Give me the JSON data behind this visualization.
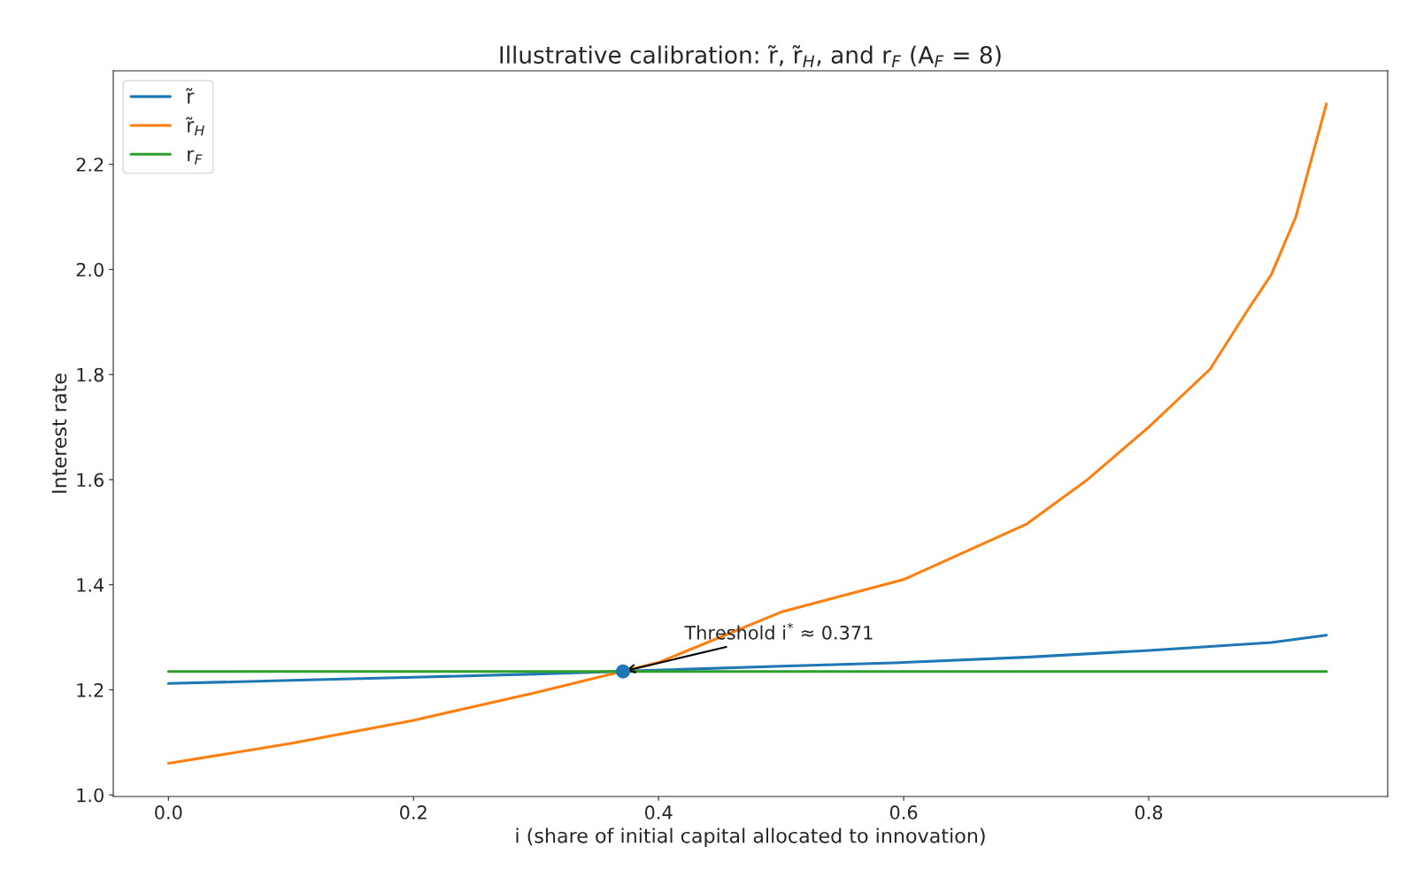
{
  "chart_data": {
    "type": "line",
    "title": "Illustrative calibration: r̃, r̃$_{H}$, and r$_{F}$ (A$_{F}$ = 8)",
    "xlabel": "i (share of initial capital allocated to innovation)",
    "ylabel": "Interest rate",
    "xlim": [
      -0.045,
      0.995
    ],
    "xticks": [
      {
        "value": 0,
        "label": "0.0"
      },
      0.2,
      0.4,
      0.6,
      0.8
    ],
    "ylim": [
      0.997,
      2.378
    ],
    "yticks": [
      {
        "value": 1,
        "label": "1.0"
      },
      1.2,
      1.4,
      1.6,
      1.8,
      {
        "value": 2,
        "label": "2.0"
      },
      2.2
    ],
    "grid": false,
    "legend": "top left",
    "line_style": "solid",
    "series": [
      {
        "name": "r̃",
        "color": "#1f77b4",
        "x": [
          0,
          0.1,
          0.2,
          0.3,
          0.5,
          0.6,
          0.7,
          0.8,
          0.9,
          0.945
        ],
        "values": [
          1.212,
          1.218,
          1.224,
          1.23,
          1.245,
          1.252,
          1.262,
          1.275,
          1.29,
          1.304
        ]
      },
      {
        "name": "r̃$_{H}$",
        "color": "#ff7f0e",
        "x": [
          0,
          0.1,
          0.2,
          0.3,
          0.4,
          0.5,
          0.6,
          0.7,
          0.75,
          0.8,
          0.85,
          0.88,
          0.9,
          0.92,
          0.945
        ],
        "values": [
          1.06,
          1.098,
          1.142,
          1.195,
          1.252,
          1.348,
          1.41,
          1.515,
          1.6,
          1.7,
          1.81,
          1.92,
          1.99,
          2.1,
          2.315
        ]
      },
      {
        "name": "r$_{F}$",
        "color": "#2ca02c",
        "x": [
          0,
          0.945
        ],
        "values": [
          1.235,
          1.235
        ]
      },
      {
        "type": "scatter",
        "color": "#1f77b4",
        "marker": "circle",
        "x": [
          0.371
        ],
        "values": [
          1.235
        ]
      }
    ],
    "annotations": [
      {
        "text": "Threshold i$^{*}$ ≈ 0.371",
        "x": 0.371,
        "y": 1.235
      }
    ]
  }
}
